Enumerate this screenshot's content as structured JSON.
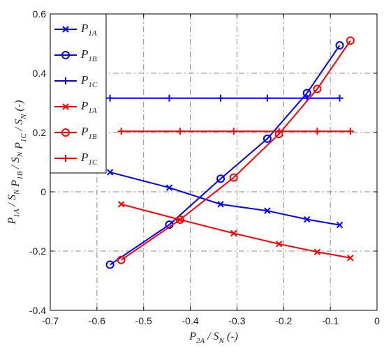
{
  "chart_data": {
    "type": "line",
    "xlabel": {
      "main": "P",
      "sub": "2A",
      "rest": " / S",
      "sub2": "N",
      "unit": " (-)"
    },
    "ylabel_parts": [
      {
        "main": "P",
        "sub": "1A",
        "rest": " / S",
        "sub2": "N"
      },
      {
        "main": "P",
        "sub": "1B",
        "rest": " / S",
        "sub2": "N"
      },
      {
        "main": "P",
        "sub": "1C",
        "rest": " / S",
        "sub2": "N",
        "unit": " (-)"
      }
    ],
    "xlim": [
      -0.7,
      0
    ],
    "ylim": [
      -0.4,
      0.6
    ],
    "xticks": [
      -0.7,
      -0.6,
      -0.5,
      -0.4,
      -0.3,
      -0.2,
      -0.1,
      0
    ],
    "xtick_labels": [
      "-0.7",
      "-0.6",
      "-0.5",
      "-0.4",
      "-0.3",
      "-0.2",
      "-0.1",
      "0"
    ],
    "yticks": [
      -0.4,
      -0.2,
      0,
      0.2,
      0.4,
      0.6
    ],
    "ytick_labels": [
      "-0.4",
      "-0.2",
      "0",
      "0.2",
      "0.4",
      "0.6"
    ],
    "grid": true,
    "legend_position": "top-left",
    "series": [
      {
        "name": "P",
        "sub": "1A",
        "color": "#0000ff",
        "marker": "x",
        "x": [
          -0.572,
          -0.445,
          -0.335,
          -0.235,
          -0.15,
          -0.08
        ],
        "y": [
          0.066,
          0.014,
          -0.042,
          -0.064,
          -0.093,
          -0.112
        ]
      },
      {
        "name": "P",
        "sub": "1B",
        "color": "#0000ff",
        "marker": "o",
        "x": [
          -0.572,
          -0.445,
          -0.335,
          -0.235,
          -0.15,
          -0.08
        ],
        "y": [
          -0.246,
          -0.111,
          0.044,
          0.179,
          0.333,
          0.494
        ]
      },
      {
        "name": "P",
        "sub": "1C",
        "color": "#0000ff",
        "marker": "+",
        "x": [
          -0.572,
          -0.445,
          -0.335,
          -0.235,
          -0.15,
          -0.08
        ],
        "y": [
          0.316,
          0.316,
          0.316,
          0.316,
          0.316,
          0.316
        ]
      },
      {
        "name": "P",
        "sub": "1A",
        "color": "#ff0000",
        "marker": "x",
        "x": [
          -0.548,
          -0.422,
          -0.307,
          -0.21,
          -0.128,
          -0.057
        ],
        "y": [
          -0.042,
          -0.094,
          -0.14,
          -0.176,
          -0.203,
          -0.223
        ]
      },
      {
        "name": "P",
        "sub": "1B",
        "color": "#ff0000",
        "marker": "o",
        "x": [
          -0.548,
          -0.422,
          -0.307,
          -0.21,
          -0.128,
          -0.057
        ],
        "y": [
          -0.23,
          -0.094,
          0.048,
          0.195,
          0.347,
          0.51
        ]
      },
      {
        "name": "P",
        "sub": "1C",
        "color": "#ff0000",
        "marker": "+",
        "x": [
          -0.548,
          -0.422,
          -0.307,
          -0.21,
          -0.128,
          -0.057
        ],
        "y": [
          0.204,
          0.204,
          0.204,
          0.204,
          0.204,
          0.204
        ]
      }
    ]
  }
}
